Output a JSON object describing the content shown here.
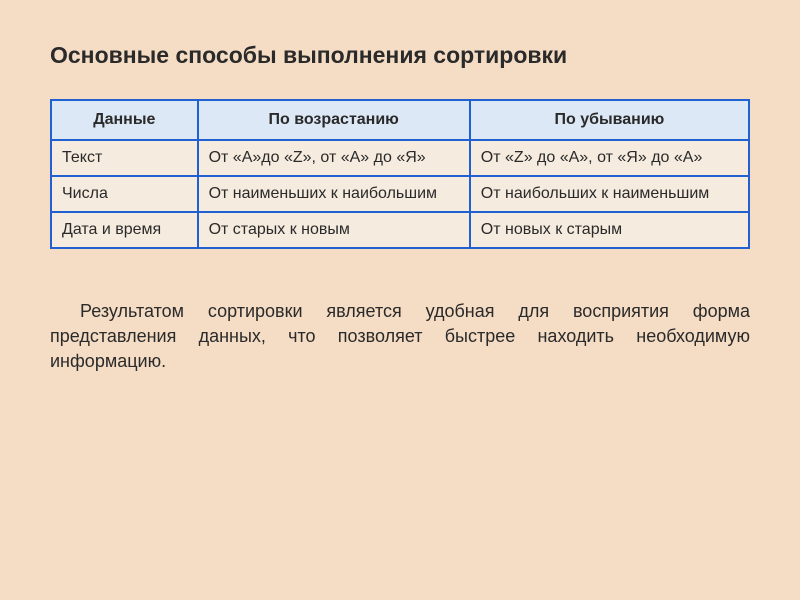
{
  "title": "Основные способы выполнения сортировки",
  "table": {
    "headers": [
      "Данные",
      "По возрастанию",
      "По убыванию"
    ],
    "rows": [
      [
        "Текст",
        "От «A»до «Z», от «А» до «Я»",
        "От «Z» до «A», от «Я» до «А»"
      ],
      [
        "Числа",
        "От наименьших к наибольшим",
        "От наибольших к наименьшим"
      ],
      [
        "Дата и время",
        "От старых к новым",
        "От новых к старым"
      ]
    ],
    "border_color": "#2060d0",
    "header_bg": "#dce8f5",
    "cell_bg": "#f5ebdf",
    "column_widths": [
      "21%",
      "39%",
      "40%"
    ]
  },
  "paragraph": "Результатом сортировки является удобная для восприятия форма представления данных, что позволяет быстрее находить необходимую информацию.",
  "page_background": "#f5dcc4",
  "text_color": "#2a2a2a"
}
